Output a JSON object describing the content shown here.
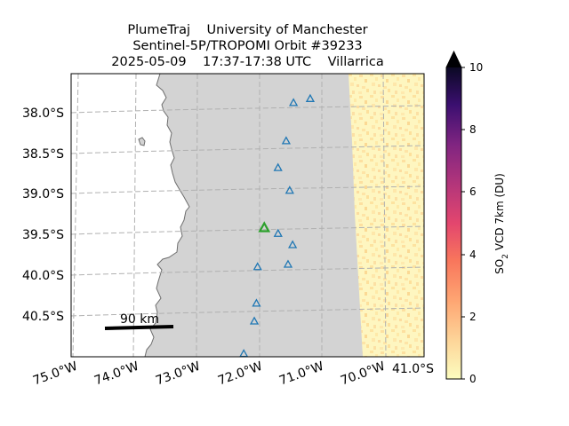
{
  "title": {
    "line1": "PlumeTraj    University of Manchester",
    "line2": "Sentinel-5P/TROPOMI Orbit #39233",
    "line3": "2025-05-09    17:37-17:38 UTC    Villarrica"
  },
  "map": {
    "lat_labels": [
      "38.0°S",
      "38.5°S",
      "39.0°S",
      "39.5°S",
      "40.0°S",
      "40.5°S"
    ],
    "lon_labels": [
      "75.0°W",
      "74.0°W",
      "73.0°W",
      "72.0°W",
      "71.0°W",
      "70.0°W"
    ],
    "corner_label": "41.0°S",
    "scale_bar_label": "90 km",
    "land_color": "#d3d3d3",
    "ocean_color": "#ffffff",
    "coast_color": "#6e6e6e",
    "grid_color": "#b0b0b0"
  },
  "markers": {
    "volcano_color": "#2ca02c",
    "volcano_name": "Villarrica",
    "volcano": {
      "lon": -71.93,
      "lat": -39.42
    },
    "other_color": "#1f77b4",
    "other_volcanoes": [
      {
        "lon": -71.15,
        "lat": -37.83
      },
      {
        "lon": -71.42,
        "lat": -37.88
      },
      {
        "lon": -71.55,
        "lat": -38.35
      },
      {
        "lon": -71.69,
        "lat": -38.68
      },
      {
        "lon": -71.51,
        "lat": -38.96
      },
      {
        "lon": -71.71,
        "lat": -39.49
      },
      {
        "lon": -71.48,
        "lat": -39.63
      },
      {
        "lon": -71.56,
        "lat": -39.87
      },
      {
        "lon": -72.05,
        "lat": -39.9
      },
      {
        "lon": -72.08,
        "lat": -40.35
      },
      {
        "lon": -72.12,
        "lat": -40.57
      },
      {
        "lon": -72.3,
        "lat": -40.97
      }
    ]
  },
  "colorbar": {
    "label_prefix": "SO",
    "label_sub": "2",
    "label_suffix": " VCD 7km (DU)",
    "ticks": [
      "0",
      "2",
      "4",
      "6",
      "8",
      "10"
    ],
    "min": 0,
    "max": 10,
    "extend": "max",
    "colormap": "magma_r"
  }
}
